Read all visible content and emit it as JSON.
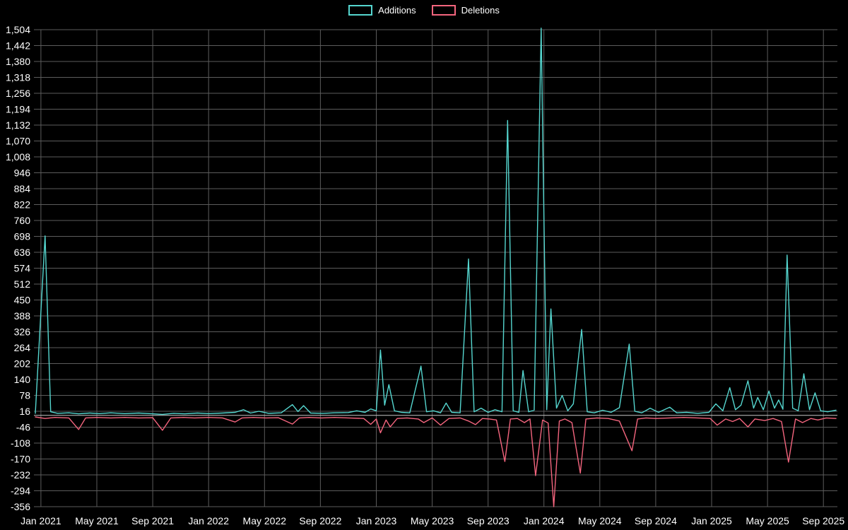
{
  "legend": {
    "items": [
      {
        "label": "Additions",
        "color": "#55d6cf"
      },
      {
        "label": "Deletions",
        "color": "#f4657e"
      }
    ]
  },
  "chart_data": {
    "type": "line",
    "title": "",
    "xlabel": "",
    "ylabel": "",
    "background": "#000000",
    "grid": true,
    "grid_color": "#5c5c5c",
    "zero_line_color": "#c8c8c8",
    "text_color": "#ffffff",
    "ylim": [
      -356,
      1504
    ],
    "xlim": [
      -0.5,
      57
    ],
    "y_ticks": [
      1504,
      1442,
      1380,
      1318,
      1256,
      1194,
      1132,
      1070,
      1008,
      946,
      884,
      822,
      760,
      698,
      636,
      574,
      512,
      450,
      388,
      326,
      264,
      202,
      140,
      78,
      16,
      -46,
      -108,
      -170,
      -232,
      -294,
      -356
    ],
    "x_ticks": [
      {
        "pos": 0,
        "label": "Jan 2021"
      },
      {
        "pos": 4,
        "label": "May 2021"
      },
      {
        "pos": 8,
        "label": "Sep 2021"
      },
      {
        "pos": 12,
        "label": "Jan 2022"
      },
      {
        "pos": 16,
        "label": "May 2022"
      },
      {
        "pos": 20,
        "label": "Sep 2022"
      },
      {
        "pos": 24,
        "label": "Jan 2023"
      },
      {
        "pos": 28,
        "label": "May 2023"
      },
      {
        "pos": 32,
        "label": "Sep 2023"
      },
      {
        "pos": 36,
        "label": "Jan 2024"
      },
      {
        "pos": 40,
        "label": "May 2024"
      },
      {
        "pos": 44,
        "label": "Sep 2024"
      },
      {
        "pos": 48,
        "label": "Jan 2025"
      },
      {
        "pos": 52,
        "label": "May 2025"
      },
      {
        "pos": 56,
        "label": "Sep 2025"
      }
    ],
    "series": [
      {
        "name": "Additions",
        "color": "#55d6cf",
        "points": [
          [
            -0.4,
            8
          ],
          [
            0.3,
            700
          ],
          [
            0.7,
            14
          ],
          [
            1.2,
            8
          ],
          [
            2,
            10
          ],
          [
            2.7,
            6
          ],
          [
            3.5,
            9
          ],
          [
            4.2,
            7
          ],
          [
            5,
            10
          ],
          [
            6,
            7
          ],
          [
            7,
            9
          ],
          [
            8,
            6
          ],
          [
            8.7,
            4
          ],
          [
            9.5,
            8
          ],
          [
            10.3,
            6
          ],
          [
            11.2,
            9
          ],
          [
            12,
            7
          ],
          [
            13,
            9
          ],
          [
            13.9,
            12
          ],
          [
            14.5,
            22
          ],
          [
            15,
            9
          ],
          [
            15.6,
            16
          ],
          [
            16.3,
            8
          ],
          [
            17.2,
            10
          ],
          [
            18,
            42
          ],
          [
            18.4,
            15
          ],
          [
            18.8,
            38
          ],
          [
            19.3,
            9
          ],
          [
            20.2,
            8
          ],
          [
            21,
            10
          ],
          [
            22,
            11
          ],
          [
            22.6,
            18
          ],
          [
            23.2,
            12
          ],
          [
            23.6,
            25
          ],
          [
            24,
            18
          ],
          [
            24.3,
            255
          ],
          [
            24.6,
            40
          ],
          [
            24.9,
            120
          ],
          [
            25.3,
            18
          ],
          [
            25.8,
            12
          ],
          [
            26.4,
            10
          ],
          [
            27.2,
            192
          ],
          [
            27.6,
            14
          ],
          [
            28.1,
            18
          ],
          [
            28.6,
            10
          ],
          [
            29,
            48
          ],
          [
            29.4,
            12
          ],
          [
            30,
            10
          ],
          [
            30.6,
            610
          ],
          [
            31,
            14
          ],
          [
            31.5,
            28
          ],
          [
            32,
            12
          ],
          [
            32.5,
            22
          ],
          [
            33,
            14
          ],
          [
            33.4,
            1150
          ],
          [
            33.8,
            18
          ],
          [
            34.2,
            12
          ],
          [
            34.5,
            175
          ],
          [
            34.9,
            14
          ],
          [
            35.3,
            20
          ],
          [
            35.8,
            1510
          ],
          [
            36.2,
            22
          ],
          [
            36.5,
            415
          ],
          [
            36.9,
            28
          ],
          [
            37.3,
            78
          ],
          [
            37.7,
            18
          ],
          [
            38.1,
            45
          ],
          [
            38.7,
            335
          ],
          [
            39.1,
            14
          ],
          [
            39.6,
            10
          ],
          [
            40.2,
            20
          ],
          [
            40.8,
            12
          ],
          [
            41.4,
            30
          ],
          [
            42.1,
            278
          ],
          [
            42.5,
            16
          ],
          [
            43,
            10
          ],
          [
            43.6,
            28
          ],
          [
            44.2,
            12
          ],
          [
            45,
            32
          ],
          [
            45.5,
            10
          ],
          [
            46.2,
            12
          ],
          [
            47,
            8
          ],
          [
            47.8,
            12
          ],
          [
            48.3,
            45
          ],
          [
            48.8,
            18
          ],
          [
            49.3,
            108
          ],
          [
            49.7,
            22
          ],
          [
            50.1,
            40
          ],
          [
            50.6,
            135
          ],
          [
            51,
            28
          ],
          [
            51.3,
            70
          ],
          [
            51.7,
            22
          ],
          [
            52.1,
            95
          ],
          [
            52.5,
            28
          ],
          [
            52.8,
            60
          ],
          [
            53.1,
            24
          ],
          [
            53.4,
            625
          ],
          [
            53.8,
            28
          ],
          [
            54.2,
            18
          ],
          [
            54.6,
            162
          ],
          [
            55,
            22
          ],
          [
            55.4,
            88
          ],
          [
            55.8,
            18
          ],
          [
            56.3,
            14
          ],
          [
            56.9,
            20
          ]
        ]
      },
      {
        "name": "Deletions",
        "color": "#f4657e",
        "points": [
          [
            -0.4,
            -6
          ],
          [
            0.3,
            -12
          ],
          [
            1,
            -8
          ],
          [
            2,
            -10
          ],
          [
            2.7,
            -55
          ],
          [
            3.2,
            -10
          ],
          [
            4,
            -8
          ],
          [
            5,
            -10
          ],
          [
            6,
            -8
          ],
          [
            7,
            -10
          ],
          [
            8,
            -9
          ],
          [
            8.7,
            -58
          ],
          [
            9.3,
            -10
          ],
          [
            10.2,
            -8
          ],
          [
            11,
            -10
          ],
          [
            12,
            -8
          ],
          [
            13,
            -10
          ],
          [
            13.9,
            -26
          ],
          [
            14.4,
            -10
          ],
          [
            15.2,
            -8
          ],
          [
            16.1,
            -10
          ],
          [
            17,
            -9
          ],
          [
            18,
            -34
          ],
          [
            18.5,
            -10
          ],
          [
            19.2,
            -8
          ],
          [
            20.1,
            -10
          ],
          [
            21,
            -8
          ],
          [
            22,
            -10
          ],
          [
            23.1,
            -12
          ],
          [
            23.6,
            -35
          ],
          [
            24,
            -14
          ],
          [
            24.3,
            -68
          ],
          [
            24.7,
            -18
          ],
          [
            25,
            -45
          ],
          [
            25.5,
            -12
          ],
          [
            26.2,
            -10
          ],
          [
            27,
            -14
          ],
          [
            27.4,
            -28
          ],
          [
            28,
            -10
          ],
          [
            28.6,
            -38
          ],
          [
            29.2,
            -12
          ],
          [
            30,
            -10
          ],
          [
            30.6,
            -22
          ],
          [
            31.1,
            -36
          ],
          [
            31.6,
            -12
          ],
          [
            32.1,
            -14
          ],
          [
            32.6,
            -18
          ],
          [
            33.2,
            -180
          ],
          [
            33.6,
            -14
          ],
          [
            34.1,
            -12
          ],
          [
            34.6,
            -28
          ],
          [
            35,
            -14
          ],
          [
            35.4,
            -235
          ],
          [
            35.9,
            -18
          ],
          [
            36.3,
            -30
          ],
          [
            36.7,
            -356
          ],
          [
            37.1,
            -22
          ],
          [
            37.5,
            -14
          ],
          [
            38,
            -28
          ],
          [
            38.6,
            -225
          ],
          [
            39,
            -14
          ],
          [
            39.8,
            -10
          ],
          [
            40.6,
            -12
          ],
          [
            41.4,
            -22
          ],
          [
            42.3,
            -138
          ],
          [
            42.7,
            -14
          ],
          [
            43.3,
            -10
          ],
          [
            44,
            -12
          ],
          [
            45,
            -10
          ],
          [
            46,
            -8
          ],
          [
            47,
            -10
          ],
          [
            47.9,
            -12
          ],
          [
            48.4,
            -38
          ],
          [
            49,
            -14
          ],
          [
            49.5,
            -24
          ],
          [
            50,
            -12
          ],
          [
            50.6,
            -45
          ],
          [
            51.1,
            -14
          ],
          [
            51.8,
            -20
          ],
          [
            52.4,
            -12
          ],
          [
            53,
            -24
          ],
          [
            53.5,
            -182
          ],
          [
            54,
            -14
          ],
          [
            54.5,
            -28
          ],
          [
            55.1,
            -12
          ],
          [
            55.6,
            -18
          ],
          [
            56.2,
            -10
          ],
          [
            56.9,
            -12
          ]
        ]
      }
    ]
  }
}
